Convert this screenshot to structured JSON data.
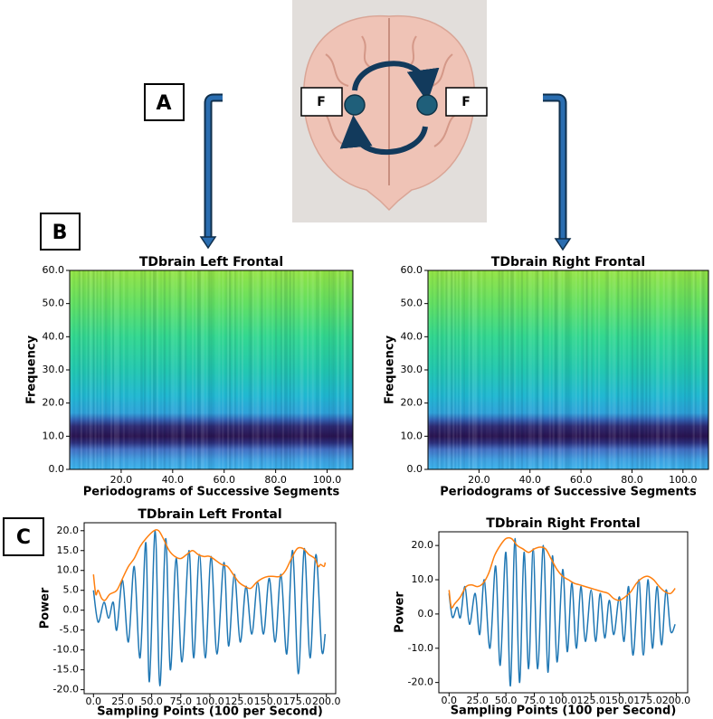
{
  "figure": {
    "panel_labels": [
      "A",
      "B",
      "C"
    ],
    "region_labels": [
      "F",
      "F"
    ]
  },
  "chart_data": [
    {
      "type": "spectrogram",
      "title": "TDbrain Left Frontal",
      "xlabel": "Periodograms of Successive Segments",
      "ylabel": "Frequency",
      "xlim": [
        0,
        110
      ],
      "ylim": [
        0,
        60
      ],
      "xticks": [
        {
          "value": 20,
          "label": "20.0"
        },
        {
          "value": 40,
          "label": "40.0"
        },
        {
          "value": 60,
          "label": "60.0"
        },
        {
          "value": 80,
          "label": "80.0"
        },
        {
          "value": 100,
          "label": "100.0"
        }
      ],
      "yticks": [
        {
          "value": 0,
          "label": "0.0"
        },
        {
          "value": 10,
          "label": "10.0"
        },
        {
          "value": 20,
          "label": "20.0"
        },
        {
          "value": 30,
          "label": "30.0"
        },
        {
          "value": 40,
          "label": "40.0"
        },
        {
          "value": 50,
          "label": "50.0"
        },
        {
          "value": 60,
          "label": "60.0"
        }
      ],
      "color_bands": {
        "frequencies": [
          0,
          3,
          6,
          8,
          10,
          13,
          15,
          17,
          22,
          30,
          40,
          50,
          60
        ],
        "colors": [
          "#3ab4ec",
          "#3f9fe0",
          "#4470c4",
          "#2c2f7c",
          "#2a1450",
          "#2e2a72",
          "#3262b4",
          "#2ea2da",
          "#20b8d2",
          "#22c8b0",
          "#32d890",
          "#62e062",
          "#94e444"
        ]
      }
    },
    {
      "type": "spectrogram",
      "title": "TDbrain Right Frontal",
      "xlabel": "Periodograms of Successive Segments",
      "ylabel": "Frequency",
      "xlim": [
        0,
        110
      ],
      "ylim": [
        0,
        60
      ],
      "xticks": [
        {
          "value": 20,
          "label": "20.0"
        },
        {
          "value": 40,
          "label": "40.0"
        },
        {
          "value": 60,
          "label": "60.0"
        },
        {
          "value": 80,
          "label": "80.0"
        },
        {
          "value": 100,
          "label": "100.0"
        }
      ],
      "yticks": [
        {
          "value": 0,
          "label": "0.0"
        },
        {
          "value": 10,
          "label": "10.0"
        },
        {
          "value": 20,
          "label": "20.0"
        },
        {
          "value": 30,
          "label": "30.0"
        },
        {
          "value": 40,
          "label": "40.0"
        },
        {
          "value": 50,
          "label": "50.0"
        },
        {
          "value": 60,
          "label": "60.0"
        }
      ],
      "color_bands": {
        "frequencies": [
          0,
          3,
          6,
          8,
          10,
          13,
          15,
          17,
          22,
          30,
          40,
          50,
          60
        ],
        "colors": [
          "#3ab4ec",
          "#3f9fe0",
          "#4470c4",
          "#2c2f7c",
          "#2a1450",
          "#2e2a72",
          "#3262b4",
          "#2ea2da",
          "#20b8d2",
          "#22c8b0",
          "#32d890",
          "#62e062",
          "#94e444"
        ]
      }
    },
    {
      "type": "line",
      "title": "TDbrain Left Frontal",
      "xlabel": "Sampling Points (100 per Second)",
      "ylabel": "Power",
      "xlim": [
        -8,
        208
      ],
      "ylim": [
        -21,
        22
      ],
      "xticks": [
        {
          "value": 0,
          "label": "0.0"
        },
        {
          "value": 25,
          "label": "25.0"
        },
        {
          "value": 50,
          "label": "50.0"
        },
        {
          "value": 75,
          "label": "75.0"
        },
        {
          "value": 100,
          "label": "100.0"
        },
        {
          "value": 125,
          "label": "125.0"
        },
        {
          "value": 150,
          "label": "150.0"
        },
        {
          "value": 175,
          "label": "175.0"
        },
        {
          "value": 200,
          "label": "200.0"
        }
      ],
      "yticks": [
        {
          "value": -20,
          "label": "-20.0"
        },
        {
          "value": -15,
          "label": "-15.0"
        },
        {
          "value": -10,
          "label": "-10.0"
        },
        {
          "value": -5,
          "label": "-5.0"
        },
        {
          "value": 0,
          "label": "0.0"
        },
        {
          "value": 5,
          "label": "5.0"
        },
        {
          "value": 10,
          "label": "10.0"
        },
        {
          "value": 15,
          "label": "15.0"
        },
        {
          "value": 20,
          "label": "20.0"
        }
      ],
      "series": [
        {
          "color": "#1f77b4",
          "x": [
            0,
            4,
            9,
            13,
            17,
            20,
            25,
            30,
            35,
            40,
            45,
            48,
            53,
            57,
            62,
            66,
            71,
            76,
            82,
            86,
            91,
            96,
            101,
            106,
            112,
            116,
            121,
            126,
            131,
            136,
            141,
            146,
            151,
            156,
            161,
            166,
            171,
            176,
            181,
            186,
            191,
            196,
            199
          ],
          "values": [
            5,
            -3,
            2,
            -2,
            2,
            -5,
            7.5,
            -8,
            11,
            -12,
            17,
            -18,
            20,
            -19,
            18,
            -15,
            13,
            -13,
            15,
            -12,
            14,
            -12,
            13.5,
            -11,
            12,
            -9,
            9,
            -8,
            6,
            -6,
            7,
            -6,
            8,
            -8,
            9,
            -11,
            15,
            -16,
            15.5,
            -12,
            14,
            -10,
            -6
          ]
        },
        {
          "color": "#ff7f0e",
          "x": [
            0,
            2,
            4,
            7,
            10,
            14,
            20,
            25,
            30,
            35,
            40,
            45,
            52,
            56,
            60,
            65,
            70,
            75,
            80,
            85,
            90,
            95,
            100,
            110,
            115,
            120,
            125,
            130,
            135,
            140,
            145,
            150,
            155,
            160,
            165,
            170,
            175,
            180,
            185,
            190,
            193,
            195,
            198,
            199
          ],
          "values": [
            9,
            4,
            5,
            3,
            2.5,
            4,
            5,
            8,
            11,
            13,
            16,
            18,
            20,
            20,
            18,
            15,
            13.5,
            13,
            14,
            15,
            14,
            13.5,
            13.5,
            11.5,
            11,
            9,
            7,
            6,
            5.5,
            7,
            8,
            8.5,
            8.5,
            8.5,
            10,
            13,
            15.5,
            15.5,
            14,
            13,
            11,
            11.5,
            11,
            12
          ]
        }
      ]
    },
    {
      "type": "line",
      "title": "TDbrain Right Frontal",
      "xlabel": "Sampling Points (100 per Second)",
      "ylabel": "Power",
      "xlim": [
        -9,
        210
      ],
      "ylim": [
        -23,
        24
      ],
      "xticks": [
        {
          "value": 0,
          "label": "0.0"
        },
        {
          "value": 25,
          "label": "25.0"
        },
        {
          "value": 50,
          "label": "50.0"
        },
        {
          "value": 75,
          "label": "75.0"
        },
        {
          "value": 100,
          "label": "100.0"
        },
        {
          "value": 125,
          "label": "125.0"
        },
        {
          "value": 150,
          "label": "150.0"
        },
        {
          "value": 175,
          "label": "175.0"
        },
        {
          "value": 200,
          "label": "200.0"
        }
      ],
      "yticks": [
        {
          "value": -20,
          "label": "-20.0"
        },
        {
          "value": -10,
          "label": "-10.0"
        },
        {
          "value": 0,
          "label": "0.0"
        },
        {
          "value": 10,
          "label": "10.0"
        },
        {
          "value": 20,
          "label": "20.0"
        }
      ],
      "series": [
        {
          "color": "#1f77b4",
          "x": [
            0,
            3,
            7,
            10,
            14,
            18,
            23,
            27,
            31,
            36,
            41,
            45,
            50,
            54,
            58,
            62,
            66,
            70,
            74,
            78,
            83,
            87,
            91,
            95,
            100,
            104,
            108,
            112,
            116,
            120,
            125,
            129,
            133,
            137,
            141,
            145,
            150,
            154,
            158,
            162,
            167,
            171,
            175,
            179,
            183,
            187,
            191,
            195,
            199
          ],
          "values": [
            6,
            -1,
            2,
            -1,
            8,
            -3,
            6,
            -6,
            10,
            -10,
            14,
            -15,
            18,
            -21,
            22,
            -20,
            18,
            -16,
            19,
            -16,
            20,
            -17,
            17,
            -14,
            13,
            -11,
            9,
            -10,
            8,
            -8,
            7,
            -8,
            6,
            -7,
            4,
            -6,
            5,
            -8,
            8,
            -12,
            10,
            -12,
            10,
            -10,
            8,
            -9,
            7,
            -5,
            -3
          ]
        },
        {
          "color": "#ff7f0e",
          "x": [
            0,
            2,
            5,
            10,
            15,
            20,
            25,
            30,
            35,
            40,
            45,
            50,
            55,
            60,
            65,
            70,
            75,
            80,
            85,
            90,
            95,
            100,
            105,
            110,
            115,
            120,
            125,
            130,
            135,
            140,
            145,
            150,
            155,
            160,
            165,
            170,
            175,
            180,
            185,
            190,
            195,
            199
          ],
          "values": [
            7,
            2,
            3,
            5,
            8,
            8.5,
            8,
            9,
            12,
            17,
            20,
            22,
            22,
            20,
            19,
            18,
            19,
            19.5,
            19,
            16,
            13,
            11,
            10,
            9,
            8.5,
            8,
            7.5,
            7,
            6.5,
            6,
            4.5,
            4,
            5,
            6.5,
            9,
            10.5,
            11,
            10,
            8,
            6.5,
            6,
            7.5
          ]
        }
      ]
    }
  ]
}
